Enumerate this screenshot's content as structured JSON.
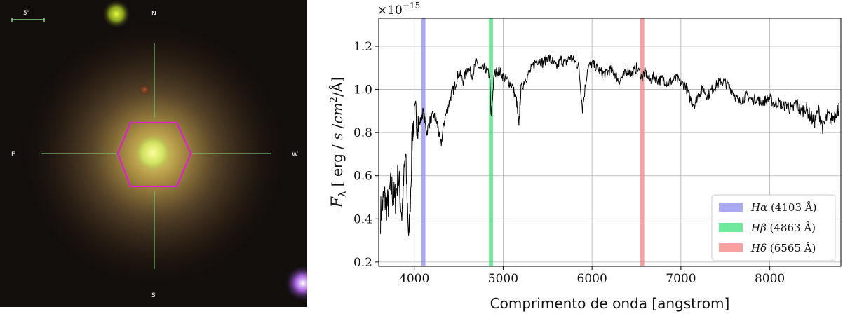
{
  "sky_image": {
    "scale_label": "5\"",
    "compass": {
      "north": "N",
      "south": "S",
      "east": "E",
      "west": "W"
    },
    "colors": {
      "crosshair": "#7fd87f",
      "aperture": "#e020d0"
    }
  },
  "chart_data": {
    "type": "line",
    "xlabel": "Comprimento de onda [angstrom]",
    "ylabel": "F_λ [ erg / s / cm² / Å ]",
    "ylabel_parts": {
      "symbol": "F",
      "sub": "λ",
      "open": " [ ",
      "erg": "erg",
      "sep1": " / ",
      "s": "s",
      "sep2": " /",
      "cm": "cm",
      "sup": "2",
      "slash": "/",
      "angstrom": "Å",
      "close": "]"
    },
    "offset_text": {
      "base": "×10",
      "exponent": "−15"
    },
    "xlim": [
      3600,
      8800
    ],
    "ylim": [
      0.18,
      1.33
    ],
    "x_ticks": [
      4000,
      5000,
      6000,
      7000,
      8000
    ],
    "x_tick_labels": [
      "4000",
      "5000",
      "6000",
      "7000",
      "8000"
    ],
    "y_ticks": [
      0.2,
      0.4,
      0.6,
      0.8,
      1.0,
      1.2
    ],
    "y_tick_labels": [
      "0.2",
      "0.4",
      "0.6",
      "0.8",
      "1.0",
      "1.2"
    ],
    "grid": true,
    "legend_position": "lower-right",
    "series_color": "#000000",
    "spectrum": {
      "x": [
        3620,
        3660,
        3700,
        3740,
        3780,
        3820,
        3860,
        3900,
        3940,
        3980,
        4020,
        4060,
        4100,
        4140,
        4180,
        4220,
        4260,
        4300,
        4340,
        4380,
        4420,
        4460,
        4500,
        4550,
        4600,
        4650,
        4700,
        4750,
        4800,
        4850,
        4863,
        4900,
        4950,
        5000,
        5050,
        5100,
        5150,
        5175,
        5200,
        5250,
        5300,
        5350,
        5400,
        5450,
        5500,
        5550,
        5600,
        5650,
        5700,
        5750,
        5800,
        5850,
        5893,
        5950,
        6000,
        6050,
        6100,
        6150,
        6200,
        6250,
        6300,
        6350,
        6400,
        6450,
        6500,
        6563,
        6600,
        6650,
        6700,
        6750,
        6800,
        6850,
        6900,
        6950,
        7000,
        7050,
        7100,
        7150,
        7200,
        7250,
        7300,
        7350,
        7400,
        7450,
        7500,
        7550,
        7600,
        7650,
        7700,
        7750,
        7800,
        7850,
        7900,
        7950,
        8000,
        8050,
        8100,
        8150,
        8200,
        8250,
        8300,
        8350,
        8400,
        8450,
        8500,
        8550,
        8600,
        8650,
        8700,
        8750,
        8780
      ],
      "y": [
        0.42,
        0.5,
        0.46,
        0.55,
        0.48,
        0.6,
        0.42,
        0.7,
        0.3,
        0.82,
        0.88,
        0.84,
        0.9,
        0.8,
        0.86,
        0.88,
        0.84,
        0.74,
        0.86,
        0.92,
        0.98,
        1.02,
        1.08,
        1.04,
        1.1,
        1.07,
        1.12,
        1.09,
        1.1,
        1.06,
        0.87,
        1.07,
        1.09,
        1.06,
        1.04,
        1.02,
        0.95,
        0.83,
        1.0,
        1.05,
        1.08,
        1.12,
        1.14,
        1.12,
        1.15,
        1.13,
        1.1,
        1.14,
        1.12,
        1.15,
        1.13,
        1.11,
        0.91,
        1.1,
        1.12,
        1.1,
        1.08,
        1.07,
        1.09,
        1.08,
        1.04,
        1.06,
        1.09,
        1.07,
        1.1,
        1.06,
        1.08,
        1.04,
        1.06,
        1.04,
        1.05,
        1.03,
        1.04,
        1.05,
        1.03,
        1.02,
        0.96,
        0.93,
        0.98,
        1.0,
        0.97,
        1.0,
        1.02,
        1.04,
        1.03,
        1.01,
        0.98,
        0.94,
        0.96,
        0.97,
        0.95,
        0.96,
        0.94,
        0.95,
        0.96,
        0.93,
        0.94,
        0.92,
        0.93,
        0.9,
        0.94,
        0.89,
        0.92,
        0.88,
        0.85,
        0.9,
        0.82,
        0.88,
        0.86,
        0.9,
        0.91
      ]
    },
    "bands": [
      {
        "name": "Hα (4103 Å)",
        "symbol": "H",
        "greek": "α",
        "wavelength": " (4103 Å)",
        "x": 4103,
        "width": 45,
        "color": "#8e8ef0"
      },
      {
        "name": "Hβ (4863 Å)",
        "symbol": "H",
        "greek": "β",
        "wavelength": " (4863 Å)",
        "x": 4863,
        "width": 45,
        "color": "#3ee07a"
      },
      {
        "name": "Hδ (6565 Å)",
        "symbol": "H",
        "greek": "δ",
        "wavelength": " (6565 Å)",
        "x": 6565,
        "width": 45,
        "color": "#f57f7f"
      }
    ]
  }
}
